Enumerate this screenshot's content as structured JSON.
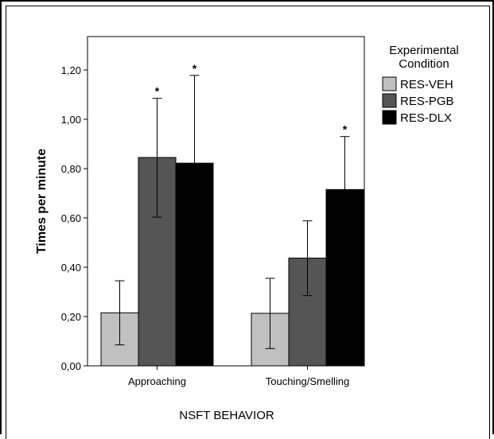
{
  "chart_data": {
    "type": "bar",
    "xlabel": "NSFT BEHAVIOR",
    "ylabel": "Times per minute",
    "ylim": [
      0,
      1.3
    ],
    "yticks": [
      "0,00",
      "0,20",
      "0,40",
      "0,60",
      "0,80",
      "1,00",
      "1,20"
    ],
    "ytick_values": [
      0,
      0.2,
      0.4,
      0.6,
      0.8,
      1.0,
      1.2
    ],
    "categories": [
      "Approaching",
      "Touching/Smelling"
    ],
    "legend": {
      "title": "Experimental Condition",
      "title_lines": [
        "Experimental",
        "Condition"
      ],
      "position": "right"
    },
    "series": [
      {
        "name": "RES-VEH",
        "color": "#c0c0c0",
        "values": [
          0.215,
          0.213
        ],
        "err_low": [
          0.085,
          0.07
        ],
        "err_high": [
          0.345,
          0.355
        ],
        "sig": [
          false,
          false
        ]
      },
      {
        "name": "RES-PGB",
        "color": "#555555",
        "values": [
          0.845,
          0.437
        ],
        "err_low": [
          0.603,
          0.285
        ],
        "err_high": [
          1.085,
          0.588
        ],
        "sig": [
          true,
          false
        ]
      },
      {
        "name": "RES-DLX",
        "color": "#000000",
        "values": [
          0.822,
          0.715
        ],
        "err_low": [
          0.467,
          0.5
        ],
        "err_high": [
          1.178,
          0.93
        ],
        "sig": [
          true,
          true
        ]
      }
    ],
    "significance_marker": "*",
    "grid": false
  }
}
